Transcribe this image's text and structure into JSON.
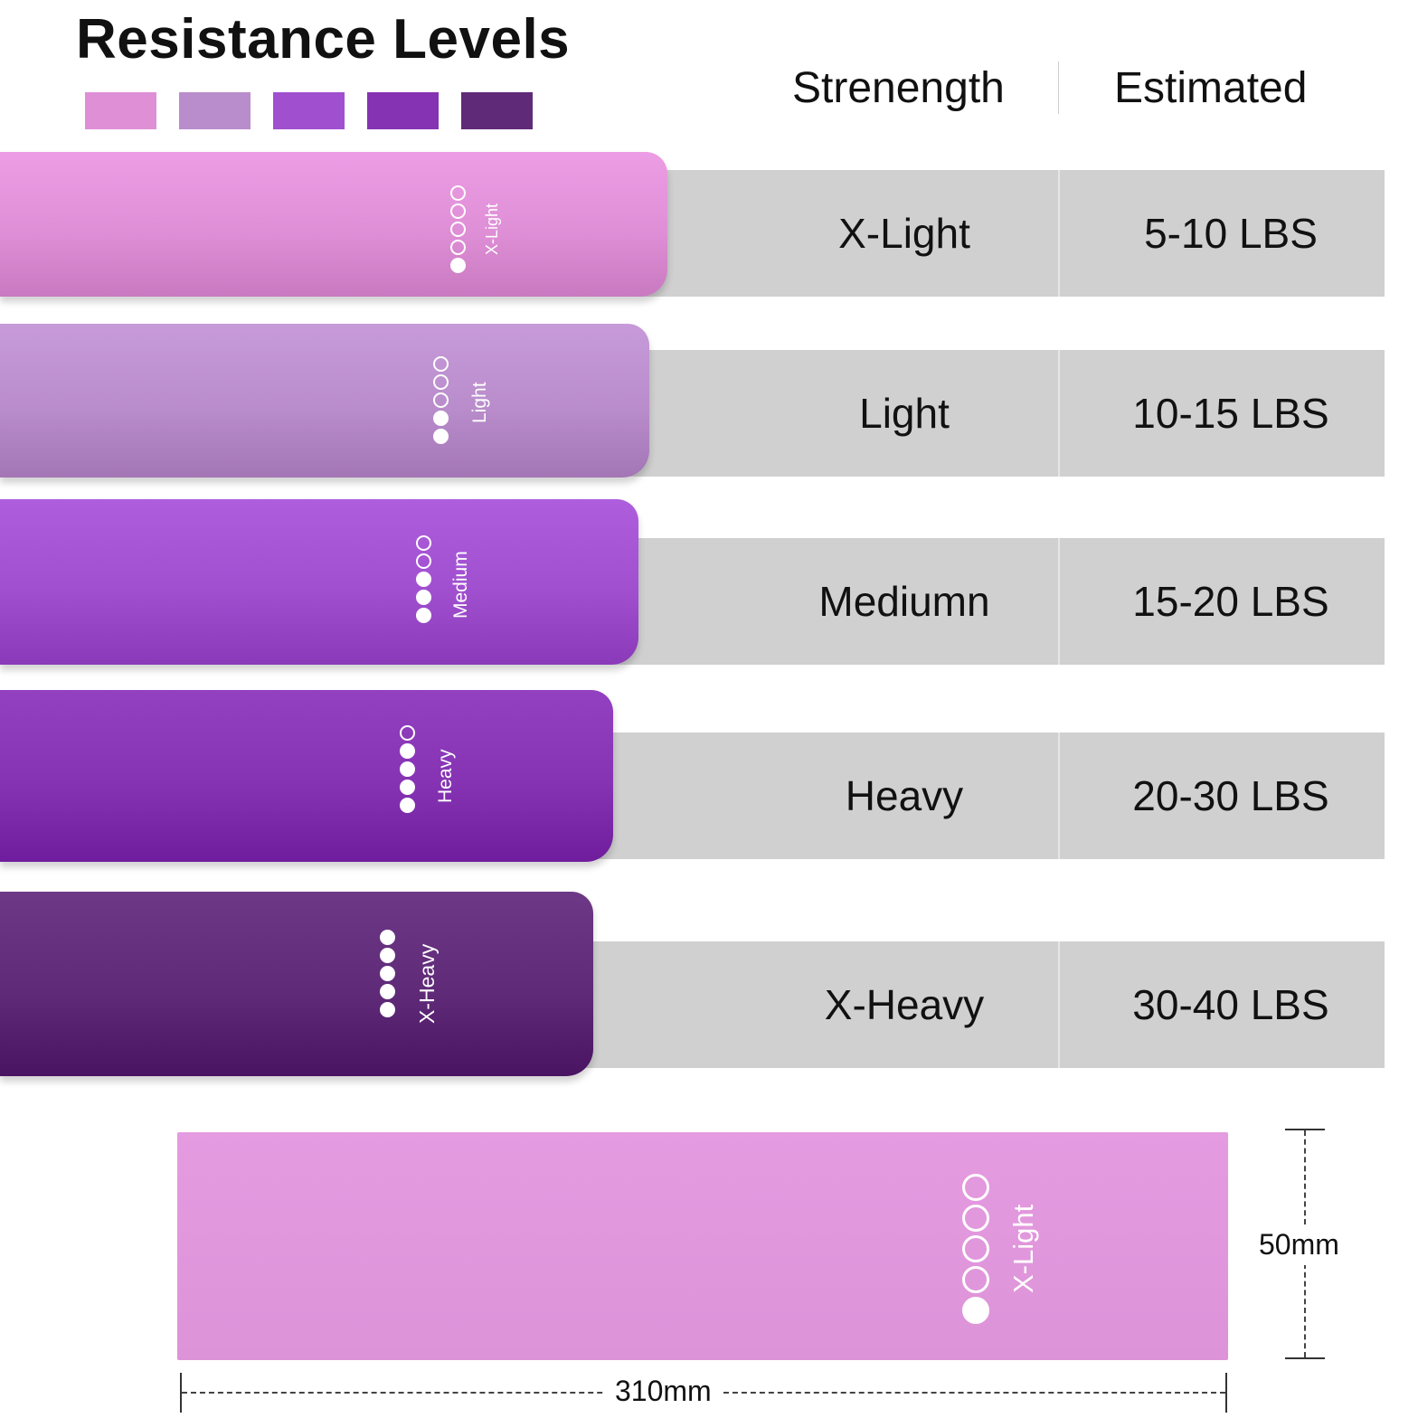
{
  "title": "Resistance Levels",
  "swatches": [
    "#df8fd6",
    "#b98ccb",
    "#a050cf",
    "#8533b3",
    "#5f2a78"
  ],
  "headers": {
    "strength": "Strenength",
    "estimated": "Estimated"
  },
  "rows": [
    {
      "strength": "X-Light",
      "weight": "5-10 LBS",
      "band_label": "X-Light",
      "filled_dots": 1,
      "color": "#df8fd6"
    },
    {
      "strength": "Light",
      "weight": "10-15 LBS",
      "band_label": "Light",
      "filled_dots": 2,
      "color": "#b98ccb"
    },
    {
      "strength": "Mediumn",
      "weight": "15-20 LBS",
      "band_label": "Medium",
      "filled_dots": 3,
      "color": "#a050cf"
    },
    {
      "strength": "Heavy",
      "weight": "20-30 LBS",
      "band_label": "Heavy",
      "filled_dots": 4,
      "color": "#8533b3"
    },
    {
      "strength": "X-Heavy",
      "weight": "30-40 LBS",
      "band_label": "X-Heavy",
      "filled_dots": 5,
      "color": "#5f2a78"
    }
  ],
  "dimension": {
    "band_label": "X-Light",
    "filled_dots": 1,
    "color": "#e59be0",
    "length": "310mm",
    "width": "50mm"
  }
}
